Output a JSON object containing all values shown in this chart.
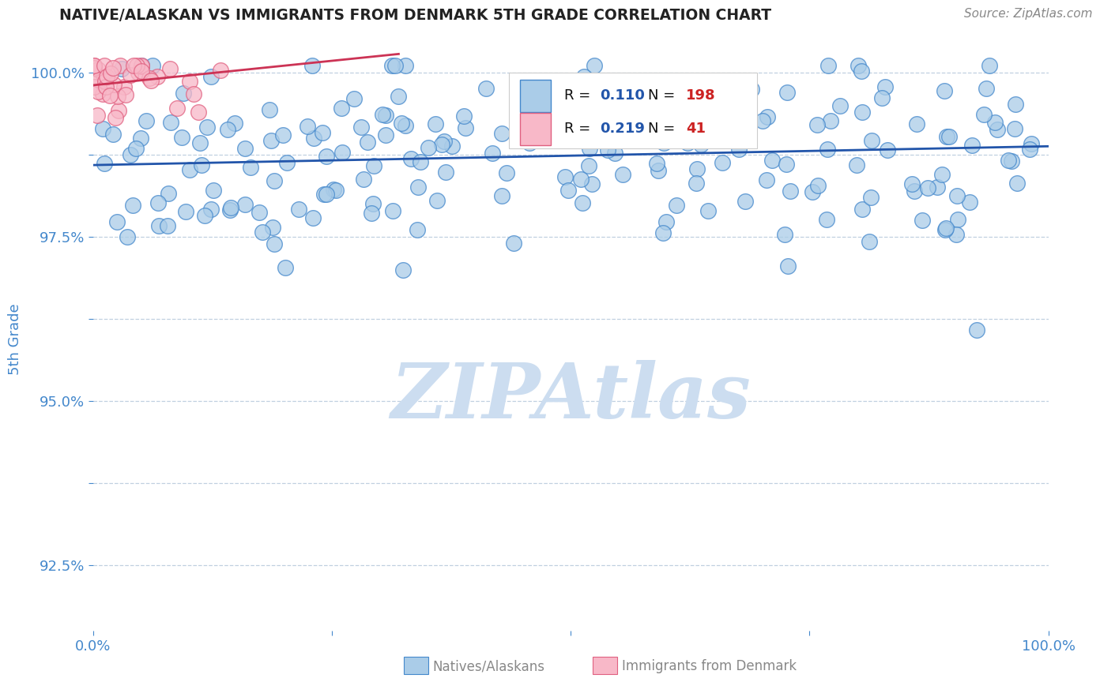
{
  "title": "NATIVE/ALASKAN VS IMMIGRANTS FROM DENMARK 5TH GRADE CORRELATION CHART",
  "source_text": "Source: ZipAtlas.com",
  "ylabel": "5th Grade",
  "xlim": [
    0.0,
    1.0
  ],
  "ylim": [
    0.915,
    1.004
  ],
  "yticks": [
    0.925,
    0.9375,
    0.95,
    0.9625,
    0.975,
    0.9875,
    1.0
  ],
  "ytick_labels": [
    "92.5%",
    "",
    "95.0%",
    "",
    "97.5%",
    "",
    "100.0%"
  ],
  "xticks": [
    0.0,
    0.25,
    0.5,
    0.75,
    1.0
  ],
  "xtick_labels": [
    "0.0%",
    "",
    "",
    "",
    "100.0%"
  ],
  "blue_R": 0.11,
  "blue_N": 198,
  "pink_R": 0.219,
  "pink_N": 41,
  "blue_fill": "#aacce8",
  "blue_edge": "#4488cc",
  "pink_fill": "#f8b8c8",
  "pink_edge": "#e06080",
  "blue_line_color": "#2255aa",
  "pink_line_color": "#cc3355",
  "watermark": "ZIPAtlas",
  "watermark_color": "#ccddf0",
  "background_color": "#ffffff",
  "grid_color": "#c0d0e0",
  "title_color": "#222222",
  "ylabel_color": "#4488cc",
  "tick_color": "#4488cc",
  "source_color": "#888888",
  "legend_text_color": "#111111",
  "legend_R_color": "#2255aa",
  "legend_N_color": "#cc2222",
  "bottom_legend_color": "#888888"
}
